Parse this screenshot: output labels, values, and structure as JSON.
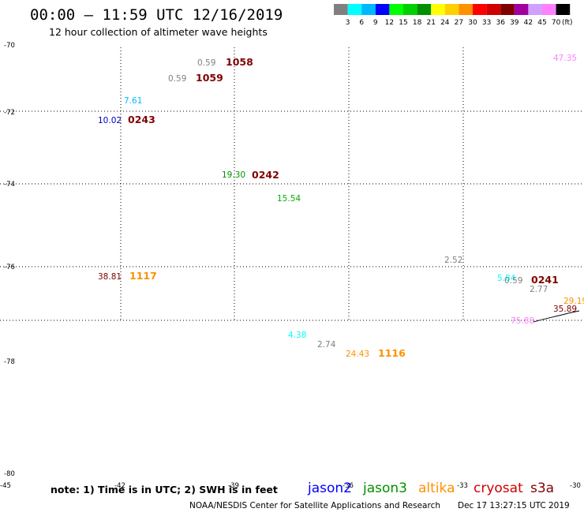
{
  "header": {
    "title": "00:00 – 11:59 UTC 12/16/2019",
    "subtitle": "12 hour collection of altimeter wave heights"
  },
  "color_scale": {
    "colors": [
      "#808080",
      "#00ffff",
      "#00b8ff",
      "#0000ff",
      "#00ff00",
      "#00d000",
      "#009000",
      "#ffff00",
      "#ffd000",
      "#ff9000",
      "#ff0000",
      "#d00000",
      "#800000",
      "#a000a0",
      "#d0a0ff",
      "#ff80ff",
      "#000000"
    ],
    "labels": [
      "3",
      "6",
      "9",
      "12",
      "15",
      "18",
      "21",
      "24",
      "27",
      "30",
      "33",
      "36",
      "39",
      "42",
      "45",
      "70"
    ],
    "unit": "(ft)"
  },
  "axes": {
    "lat_labels": [
      "-70",
      "-72",
      "-74",
      "-76",
      "-78",
      "-80"
    ],
    "lon_labels": [
      "-45",
      "-42",
      "-39",
      "-36",
      "-33",
      "-30"
    ]
  },
  "observations": [
    {
      "text": "0.59",
      "color": "#808080"
    },
    {
      "text": "1058",
      "color": "#800000"
    },
    {
      "text": "0.59",
      "color": "#808080"
    },
    {
      "text": "1059",
      "color": "#800000"
    },
    {
      "text": "7.61",
      "color": "#00b8ff"
    },
    {
      "text": "10.02",
      "color": "#0000c0"
    },
    {
      "text": "0243",
      "color": "#800000"
    },
    {
      "text": "19.30",
      "color": "#009000"
    },
    {
      "text": "0242",
      "color": "#800000"
    },
    {
      "text": "15.54",
      "color": "#00b000"
    },
    {
      "text": "38.81",
      "color": "#800000"
    },
    {
      "text": "1117",
      "color": "#ff9000"
    },
    {
      "text": "47.35",
      "color": "#ff80ff"
    },
    {
      "text": "2.52",
      "color": "#808080"
    },
    {
      "text": "5.84",
      "color": "#00ffff"
    },
    {
      "text": "0.59",
      "color": "#808080"
    },
    {
      "text": "0241",
      "color": "#800000"
    },
    {
      "text": "2.77",
      "color": "#808080"
    },
    {
      "text": "29.19",
      "color": "#ff9000"
    },
    {
      "text": "35.89",
      "color": "#800000"
    },
    {
      "text": "75.88",
      "color": "#ff80ff"
    },
    {
      "text": "4.38",
      "color": "#00ffff"
    },
    {
      "text": "2.74",
      "color": "#808080"
    },
    {
      "text": "24.43",
      "color": "#ff9000"
    },
    {
      "text": "1116",
      "color": "#ff9000"
    }
  ],
  "footer": {
    "note": "note: 1) Time is in UTC; 2) SWH is in feet",
    "satellites": [
      {
        "name": "jason2",
        "color": "#0000ff"
      },
      {
        "name": "jason3",
        "color": "#009000"
      },
      {
        "name": "altika",
        "color": "#ff9000"
      },
      {
        "name": "cryosat",
        "color": "#d00000"
      },
      {
        "name": "s3a",
        "color": "#800000"
      }
    ],
    "credit": "NOAA/NESDIS Center for Satellite Applications and Research",
    "timestamp": "Dec 17 13:27:15 UTC 2019"
  }
}
